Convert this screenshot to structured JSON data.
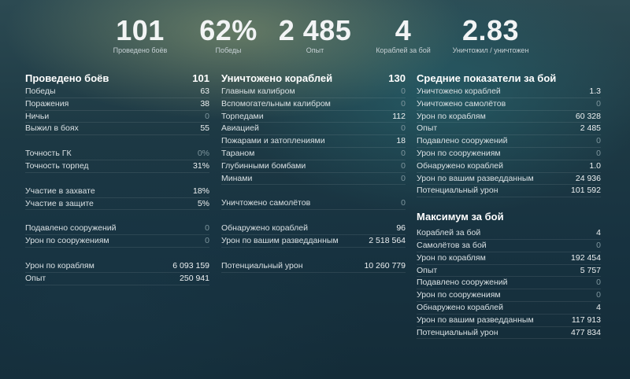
{
  "hero": [
    {
      "value": "101",
      "label": "Проведено боёв"
    },
    {
      "value": "62%",
      "label": "Победы"
    },
    {
      "value": "2 485",
      "label": "Опыт"
    },
    {
      "value": "4",
      "label": "Кораблей за бой"
    },
    {
      "value": "2.83",
      "label": "Уничтожил / уничтожен"
    }
  ],
  "battles": {
    "title": "Проведено боёв",
    "total": "101",
    "rows": [
      {
        "label": "Победы",
        "value": "63"
      },
      {
        "label": "Поражения",
        "value": "38"
      },
      {
        "label": "Ничьи",
        "value": "0"
      },
      {
        "label": "Выжил в боях",
        "value": "55"
      },
      {
        "label": "Точность ГК",
        "value": "0%"
      },
      {
        "label": "Точность торпед",
        "value": "31%"
      },
      {
        "label": "Участие в захвате",
        "value": "18%"
      },
      {
        "label": "Участие в защите",
        "value": "5%"
      },
      {
        "label": "Подавлено сооружений",
        "value": "0"
      },
      {
        "label": "Урон по сооружениям",
        "value": "0"
      },
      {
        "label": "Урон по кораблям",
        "value": "6 093 159"
      },
      {
        "label": "Опыт",
        "value": "250 941"
      }
    ]
  },
  "destroyed": {
    "title": "Уничтожено кораблей",
    "total": "130",
    "rows": [
      {
        "label": "Главным калибром",
        "value": "0"
      },
      {
        "label": "Вспомогательным калибром",
        "value": "0"
      },
      {
        "label": "Торпедами",
        "value": "112"
      },
      {
        "label": "Авиацией",
        "value": "0"
      },
      {
        "label": "Пожарами и затоплениями",
        "value": "18"
      },
      {
        "label": "Тараном",
        "value": "0"
      },
      {
        "label": "Глубинными бомбами",
        "value": "0"
      },
      {
        "label": "Минами",
        "value": "0"
      },
      {
        "label": "Уничтожено самолётов",
        "value": "0"
      },
      {
        "label": "Обнаружено кораблей",
        "value": "96"
      },
      {
        "label": "Урон по вашим разведданным",
        "value": "2 518 564"
      },
      {
        "label": "Потенциальный урон",
        "value": "10 260 779"
      }
    ]
  },
  "average": {
    "title": "Средние показатели за бой",
    "rows": [
      {
        "label": "Уничтожено кораблей",
        "value": "1.3"
      },
      {
        "label": "Уничтожено самолётов",
        "value": "0"
      },
      {
        "label": "Урон по кораблям",
        "value": "60 328"
      },
      {
        "label": "Опыт",
        "value": "2 485"
      },
      {
        "label": "Подавлено сооружений",
        "value": "0"
      },
      {
        "label": "Урон по сооружениям",
        "value": "0"
      },
      {
        "label": "Обнаружено кораблей",
        "value": "1.0"
      },
      {
        "label": "Урон по вашим разведданным",
        "value": "24 936"
      },
      {
        "label": "Потенциальный урон",
        "value": "101 592"
      }
    ]
  },
  "maximum": {
    "title": "Максимум за бой",
    "rows": [
      {
        "label": "Кораблей за бой",
        "value": "4"
      },
      {
        "label": "Самолётов за бой",
        "value": "0"
      },
      {
        "label": "Урон по кораблям",
        "value": "192 454"
      },
      {
        "label": "Опыт",
        "value": "5 757"
      },
      {
        "label": "Подавлено сооружений",
        "value": "0"
      },
      {
        "label": "Урон по сооружениям",
        "value": "0"
      },
      {
        "label": "Обнаружено кораблей",
        "value": "4"
      },
      {
        "label": "Урон по вашим разведданным",
        "value": "117 913"
      },
      {
        "label": "Потенциальный урон",
        "value": "477 834"
      }
    ]
  }
}
